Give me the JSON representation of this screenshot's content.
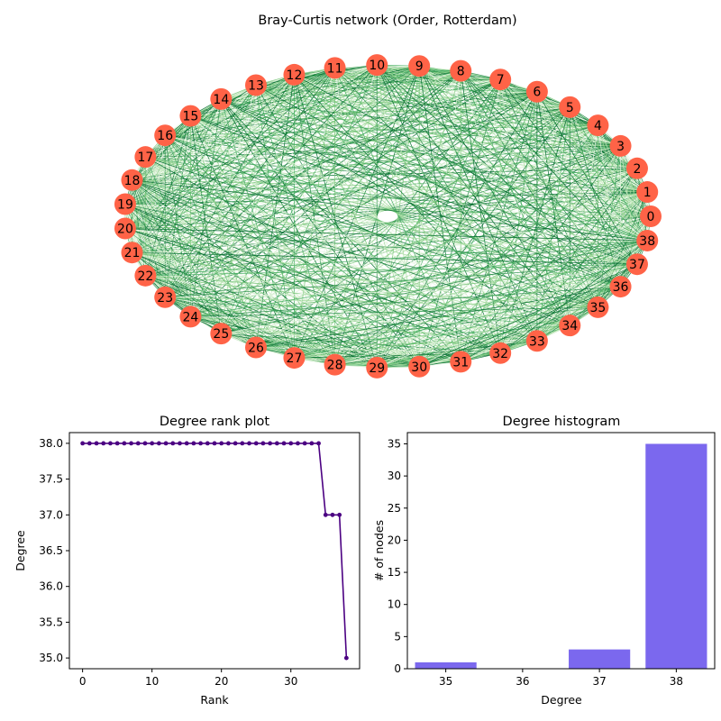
{
  "chart_data": [
    {
      "type": "network",
      "title": "Bray-Curtis network (Order, Rotterdam)",
      "node_labels": [
        "0",
        "1",
        "2",
        "3",
        "4",
        "5",
        "6",
        "7",
        "8",
        "9",
        "10",
        "11",
        "12",
        "13",
        "14",
        "15",
        "16",
        "17",
        "18",
        "19",
        "20",
        "21",
        "22",
        "23",
        "24",
        "25",
        "26",
        "27",
        "28",
        "29",
        "30",
        "31",
        "32",
        "33",
        "34",
        "35",
        "36",
        "37",
        "38"
      ],
      "node_color": "#ff6347",
      "edge_colors": [
        "#006d2c",
        "#238b45",
        "#41ab5d",
        "#74c476",
        "#a1d99b",
        "#c7e9c0",
        "#e5f5e0"
      ]
    },
    {
      "type": "line",
      "title": "Degree rank plot",
      "xlabel": "Rank",
      "ylabel": "Degree",
      "x": [
        0,
        1,
        2,
        3,
        4,
        5,
        6,
        7,
        8,
        9,
        10,
        11,
        12,
        13,
        14,
        15,
        16,
        17,
        18,
        19,
        20,
        21,
        22,
        23,
        24,
        25,
        26,
        27,
        28,
        29,
        30,
        31,
        32,
        33,
        34,
        35,
        36,
        37,
        38
      ],
      "y": [
        38,
        38,
        38,
        38,
        38,
        38,
        38,
        38,
        38,
        38,
        38,
        38,
        38,
        38,
        38,
        38,
        38,
        38,
        38,
        38,
        38,
        38,
        38,
        38,
        38,
        38,
        38,
        38,
        38,
        38,
        38,
        38,
        38,
        38,
        38,
        37,
        37,
        37,
        35
      ],
      "xlim": [
        -1.9,
        39.9
      ],
      "ylim": [
        34.85,
        38.15
      ],
      "xticks": [
        "0",
        "10",
        "20",
        "30"
      ],
      "xtick_values": [
        0,
        10,
        20,
        30
      ],
      "yticks": [
        "35.0",
        "35.5",
        "36.0",
        "36.5",
        "37.0",
        "37.5",
        "38.0"
      ],
      "ytick_values": [
        35,
        35.5,
        36,
        36.5,
        37,
        37.5,
        38
      ],
      "color": "#4b0082"
    },
    {
      "type": "bar",
      "title": "Degree histogram",
      "xlabel": "Degree",
      "ylabel": "# of nodes",
      "categories": [
        "35",
        "36",
        "37",
        "38"
      ],
      "category_values": [
        35,
        36,
        37,
        38
      ],
      "values": [
        1,
        0,
        3,
        35
      ],
      "xlim": [
        34.5,
        38.5
      ],
      "ylim": [
        0,
        36.75
      ],
      "yticks": [
        "0",
        "5",
        "10",
        "15",
        "20",
        "25",
        "30",
        "35"
      ],
      "ytick_values": [
        0,
        5,
        10,
        15,
        20,
        25,
        30,
        35
      ],
      "color": "#7b68ee"
    }
  ]
}
